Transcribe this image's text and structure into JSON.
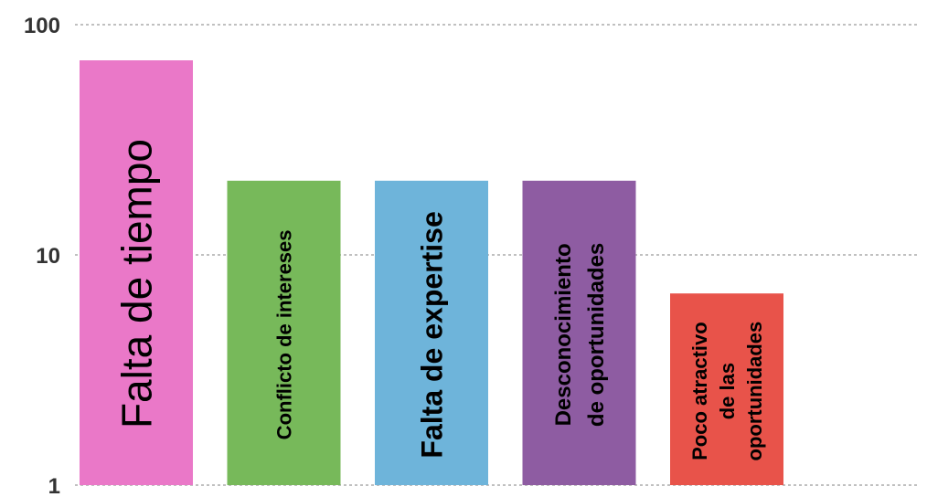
{
  "chart_data": {
    "type": "bar",
    "scale": "log",
    "ylim": [
      1,
      100
    ],
    "grid": true,
    "legend": "none",
    "title": "",
    "xlabel": "",
    "ylabel": "",
    "y_ticks": [
      "100",
      "10",
      "1"
    ],
    "y_tick_values": [
      100,
      10,
      1
    ],
    "categories": [
      "Falta de tiempo",
      "Conflicto de intereses",
      "Falta de expertise",
      "Desconocimiento de oportunidades",
      "Poco atractivo de las oportunidades"
    ],
    "label_lines": [
      [
        "Falta de tiempo"
      ],
      [
        "Conflicto de intereses"
      ],
      [
        "Falta de expertise"
      ],
      [
        "Desconocimiento",
        "de oportunidades"
      ],
      [
        "Poco atractivo",
        "de las",
        "oportunidades"
      ]
    ],
    "values": [
      70,
      21,
      21,
      21,
      6.8
    ],
    "colors": [
      "#EA78C8",
      "#77B95A",
      "#6EB4DA",
      "#8E5CA2",
      "#E8534A"
    ]
  }
}
